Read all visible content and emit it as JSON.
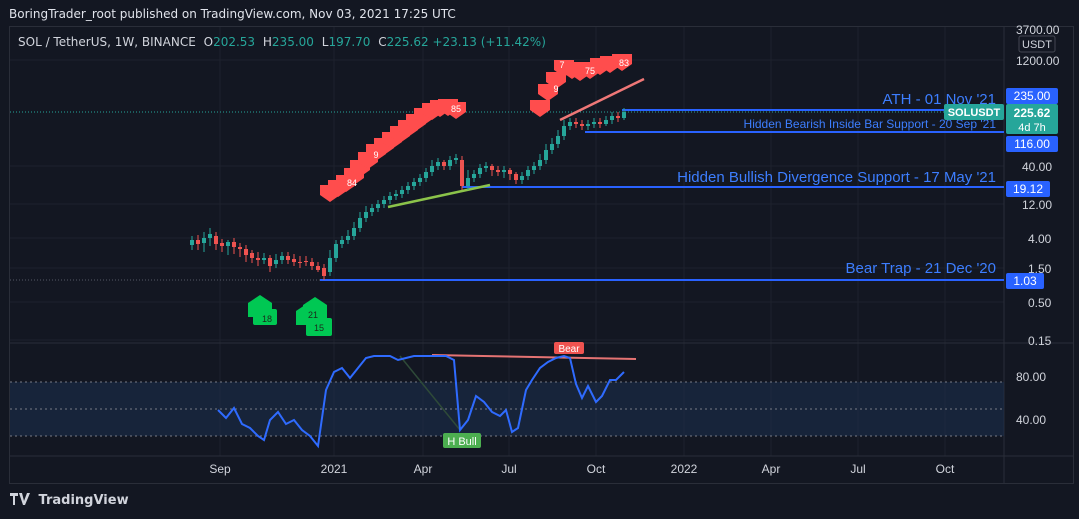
{
  "publisher": "BoringTrader_root published on TradingView.com, Nov 03, 2021 17:25 UTC",
  "legend": {
    "symbol": "SOL / TetherUS, 1W, BINANCE",
    "o_label": "O",
    "o": "202.53",
    "h_label": "H",
    "h": "235.00",
    "l_label": "L",
    "l": "197.70",
    "c_label": "C",
    "c": "225.62",
    "change": "+23.13 (+11.42%)"
  },
  "price_axis": {
    "currency": "USDT",
    "ticks": [
      "3700.00",
      "1200.00",
      "40.00",
      "12.00",
      "4.00",
      "1.50",
      "0.50",
      "0.15"
    ]
  },
  "price_badges": [
    {
      "text": "235.00",
      "color": "#2962ff"
    },
    {
      "text": "SOLUSDT",
      "color": "#26a69a"
    },
    {
      "text": "225.62",
      "color": "#26a69a"
    },
    {
      "text": "4d 7h",
      "color": "#26a69a"
    },
    {
      "text": "116.00",
      "color": "#2962ff"
    },
    {
      "text": "19.12",
      "color": "#2962ff"
    },
    {
      "text": "1.03",
      "color": "#2962ff"
    }
  ],
  "rsi_axis": {
    "ticks": [
      "80.00",
      "40.00"
    ]
  },
  "time_axis": {
    "ticks": [
      "Sep",
      "2021",
      "Apr",
      "Jul",
      "Oct",
      "2022",
      "Apr",
      "Jul",
      "Oct"
    ]
  },
  "annotations": {
    "ath": "ATH - 01 Nov '21",
    "hidden_bearish": "Hidden Bearish Inside Bar Support - 20 Sep '21",
    "hidden_bullish": "Hidden Bullish Divergence Support - 17 May '21",
    "bear_trap": "Bear  Trap - 21 Dec '20",
    "bear_label": "Bear",
    "hbull_label": "H Bull"
  },
  "signals": {
    "sell_visible": [
      "84",
      "9",
      "85",
      "9",
      "7",
      "75",
      "83"
    ],
    "buy_visible": [
      "18",
      "21",
      "15"
    ]
  },
  "branding": "TradingView",
  "colors": {
    "up": "#26a69a",
    "down": "#ef5350",
    "level": "#2962ff",
    "rsi": "#2962ff",
    "accent": "#4caf50"
  },
  "chart_data": {
    "type": "candlestick",
    "title": "SOL / TetherUS, 1W, BINANCE",
    "scale": "log",
    "x": [
      "2020-08",
      "2020-09",
      "2020-10",
      "2020-11",
      "2020-12",
      "2021-01",
      "2021-02",
      "2021-03",
      "2021-04",
      "2021-05",
      "2021-06",
      "2021-07",
      "2021-08",
      "2021-09",
      "2021-10",
      "2021-11"
    ],
    "close": [
      3.4,
      3.0,
      2.2,
      1.8,
      1.5,
      3.5,
      12,
      15,
      30,
      45,
      32,
      26,
      75,
      140,
      200,
      225.62
    ],
    "levels": [
      235.0,
      116.0,
      19.12,
      1.03
    ],
    "rsi": {
      "ticks": [
        80,
        40
      ],
      "bands": [
        70,
        50,
        30
      ]
    }
  }
}
